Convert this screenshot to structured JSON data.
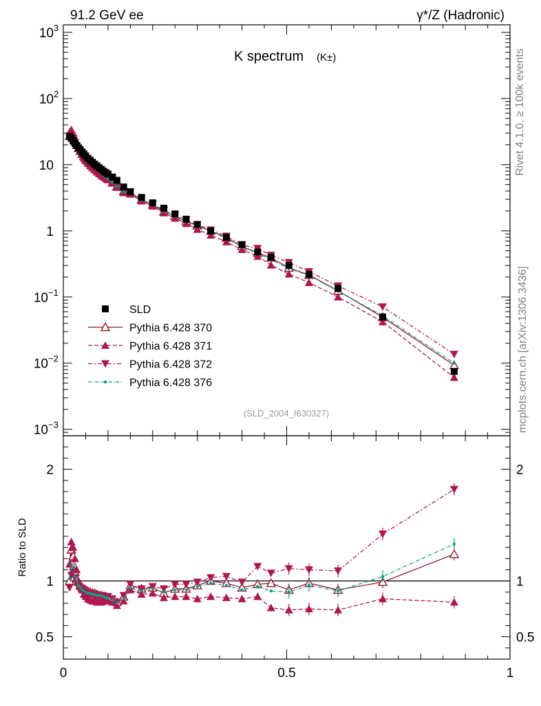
{
  "header": {
    "left": "91.2 GeV ee",
    "right": "γ*/Z (Hadronic)"
  },
  "side_labels": {
    "top": "Rivet 4.1.0, ≥ 100k events",
    "bottom": "mcplots.cern.ch [arXiv:1306.3436]"
  },
  "chart_data": {
    "type": "scatter",
    "title": "K spectrum",
    "title_sub": "(K±)",
    "watermark": "(SLD_2004_I630327)",
    "xlim": [
      0,
      1
    ],
    "x_ticks": [
      "0",
      "0.5",
      "1"
    ],
    "main": {
      "yscale": "log",
      "ylim": [
        0.0008,
        1300
      ],
      "y_ticks": [
        {
          "value": 1000,
          "base": "10",
          "exp": "3"
        },
        {
          "value": 100,
          "base": "10",
          "exp": "2"
        },
        {
          "value": 10,
          "base": "10",
          "exp": ""
        },
        {
          "value": 1,
          "base": "1",
          "exp": ""
        },
        {
          "value": 0.1,
          "base": "10",
          "exp": "−1"
        },
        {
          "value": 0.01,
          "base": "10",
          "exp": "−2"
        },
        {
          "value": 0.001,
          "base": "10",
          "exp": "−3"
        }
      ]
    },
    "ratio": {
      "ylabel": "Ratio to SLD",
      "ylim": [
        0.3,
        2.3
      ],
      "y_ticks": [
        "0.5",
        "1",
        "2"
      ],
      "y_tick_values": [
        0.5,
        1,
        2
      ]
    },
    "x": [
      0.014,
      0.018,
      0.022,
      0.026,
      0.03,
      0.034,
      0.038,
      0.042,
      0.046,
      0.05,
      0.055,
      0.06,
      0.065,
      0.07,
      0.075,
      0.08,
      0.085,
      0.09,
      0.095,
      0.1,
      0.11,
      0.12,
      0.135,
      0.15,
      0.175,
      0.2,
      0.225,
      0.25,
      0.275,
      0.3,
      0.33,
      0.365,
      0.4,
      0.435,
      0.465,
      0.505,
      0.55,
      0.615,
      0.715,
      0.875
    ],
    "sld": [
      27,
      25,
      23,
      21,
      19.5,
      18,
      16.8,
      15.5,
      14.5,
      13.5,
      12.5,
      11.7,
      10.9,
      10.2,
      9.6,
      9.0,
      8.5,
      8.0,
      7.6,
      7.2,
      6.5,
      5.8,
      4.6,
      3.9,
      3.2,
      2.65,
      2.2,
      1.8,
      1.5,
      1.25,
      1.0,
      0.8,
      0.62,
      0.48,
      0.4,
      0.3,
      0.22,
      0.135,
      0.05,
      0.0075
    ],
    "series": [
      {
        "name": "Pythia 6.428 370",
        "color": "#8f1a2a",
        "marker": "triangle-open",
        "dash": "",
        "ratio": [
          1.0,
          1.28,
          1.22,
          1.08,
          1.02,
          0.99,
          0.96,
          0.94,
          0.93,
          0.92,
          0.91,
          0.9,
          0.89,
          0.89,
          0.88,
          0.87,
          0.87,
          0.86,
          0.86,
          0.85,
          0.83,
          0.81,
          0.86,
          0.96,
          0.93,
          0.94,
          0.89,
          0.93,
          0.93,
          0.96,
          1.0,
          0.98,
          0.94,
          0.97,
          0.98,
          0.92,
          0.98,
          0.92,
          0.99,
          1.24
        ]
      },
      {
        "name": "Pythia 6.428 371",
        "color": "#b0164f",
        "marker": "triangle-up",
        "dash": "6 3",
        "ratio": [
          1.15,
          1.35,
          1.3,
          1.2,
          1.1,
          1.0,
          0.95,
          0.92,
          0.88,
          0.86,
          0.84,
          0.83,
          0.82,
          0.82,
          0.81,
          0.81,
          0.81,
          0.82,
          0.82,
          0.82,
          0.81,
          0.78,
          0.82,
          0.92,
          0.88,
          0.89,
          0.85,
          0.86,
          0.86,
          0.84,
          0.86,
          0.85,
          0.84,
          0.86,
          0.76,
          0.74,
          0.75,
          0.74,
          0.84,
          0.81
        ]
      },
      {
        "name": "Pythia 6.428 372",
        "color": "#b0164f",
        "marker": "triangle-down",
        "dash": "6 3 2 3",
        "ratio": [
          0.94,
          1.05,
          1.08,
          1.03,
          0.98,
          0.95,
          0.93,
          0.92,
          0.91,
          0.9,
          0.89,
          0.89,
          0.88,
          0.88,
          0.87,
          0.87,
          0.87,
          0.86,
          0.86,
          0.86,
          0.84,
          0.81,
          0.87,
          0.97,
          0.93,
          0.95,
          0.93,
          0.97,
          0.97,
          0.99,
          1.03,
          1.04,
          0.99,
          1.13,
          1.07,
          1.11,
          1.1,
          1.09,
          1.42,
          1.82
        ]
      },
      {
        "name": "Pythia 6.428 376",
        "color": "#0f9c80",
        "marker": "dot",
        "dash": "5 2 1 2",
        "ratio": [
          1.02,
          1.15,
          1.12,
          1.04,
          1.0,
          0.96,
          0.94,
          0.92,
          0.91,
          0.9,
          0.89,
          0.89,
          0.88,
          0.88,
          0.87,
          0.87,
          0.87,
          0.86,
          0.85,
          0.85,
          0.83,
          0.8,
          0.84,
          0.94,
          0.91,
          0.93,
          0.9,
          0.92,
          0.92,
          0.95,
          0.98,
          0.96,
          0.92,
          0.95,
          0.91,
          0.9,
          0.96,
          0.91,
          1.04,
          1.33
        ]
      }
    ],
    "legend": {
      "data_label": "SLD",
      "placement": "left-middle"
    }
  }
}
